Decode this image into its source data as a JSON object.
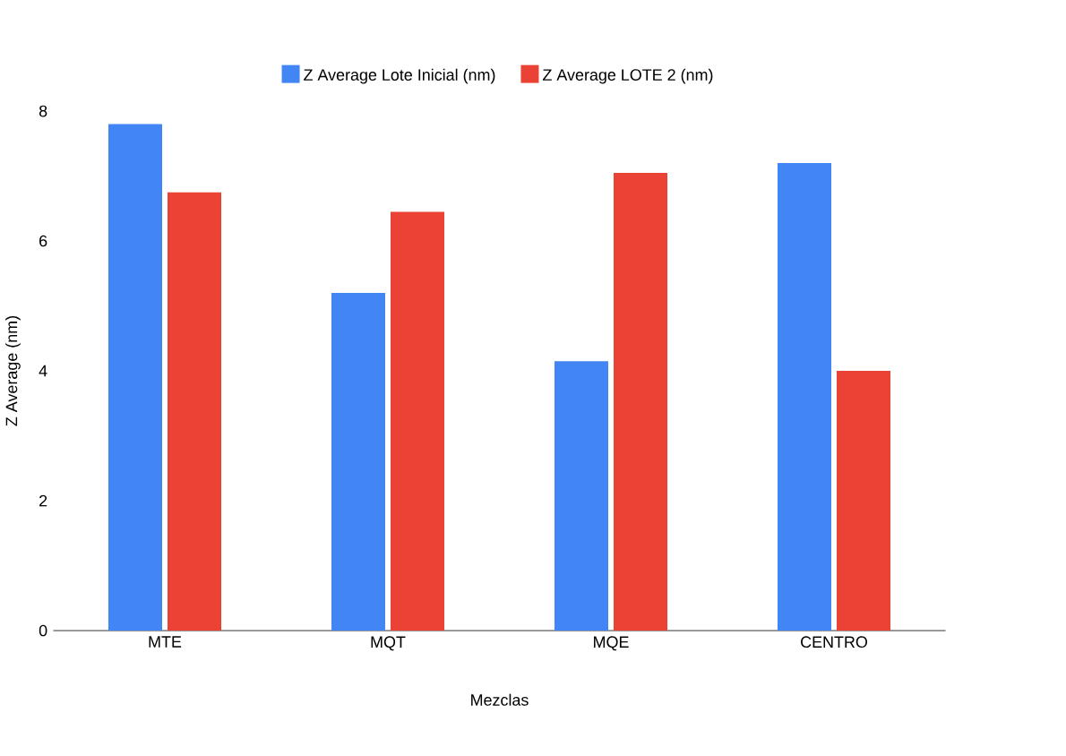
{
  "chart_data": {
    "type": "bar",
    "xlabel": "Mezclas",
    "ylabel": "Z Average (nm)",
    "categories": [
      "MTE",
      "MQT",
      "MQE",
      "CENTRO"
    ],
    "series": [
      {
        "name": "Z Average Lote Inicial (nm)",
        "color": "#4285f4",
        "values": [
          7.8,
          5.2,
          4.15,
          7.2
        ]
      },
      {
        "name": "Z Average LOTE 2 (nm)",
        "color": "#ea4335",
        "values": [
          6.75,
          6.45,
          7.05,
          4.0
        ]
      }
    ],
    "ylim": [
      0,
      8
    ],
    "yticks": [
      0,
      2,
      4,
      6,
      8
    ],
    "legend": "top",
    "grid": false
  }
}
